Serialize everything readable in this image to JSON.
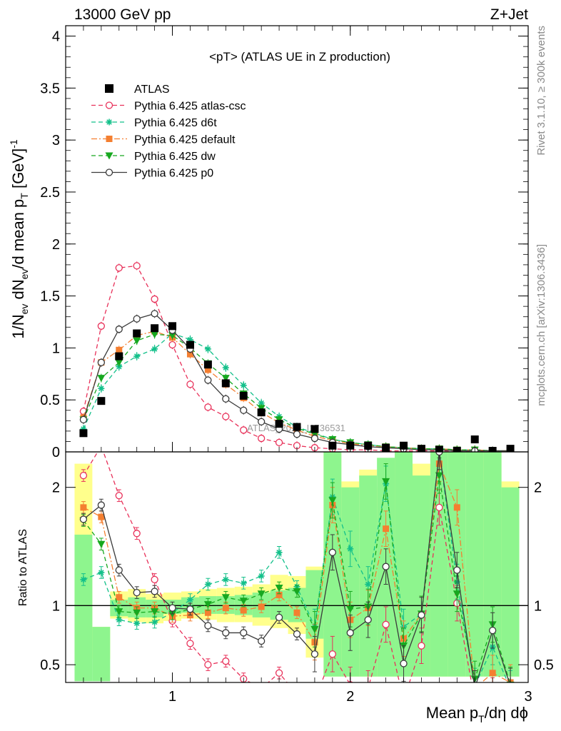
{
  "header": {
    "left": "13000 GeV pp",
    "right": "Z+Jet"
  },
  "side_labels": {
    "rivet": "Rivet 3.1.10, ≥ 300k events",
    "mcplots": "mcplots.cern.ch [arXiv:1306.3436]"
  },
  "watermark": "ATLAS_2019_I1736531",
  "main_title": "<pT> (ATLAS UE in Z production)",
  "top_axis": {
    "ylabel_parts": {
      "a": "1/N",
      "b": "ev",
      "c": " dN",
      "d": "ev",
      "e": "/d mean p",
      "f": "T",
      "g": " [GeV]",
      "h": "-1"
    },
    "ylim": [
      0,
      4.1
    ],
    "yticks": [
      0,
      0.5,
      1,
      1.5,
      2,
      2.5,
      3,
      3.5,
      4
    ],
    "ytick_labels": [
      "0",
      "0.5",
      "1",
      "1.5",
      "2",
      "2.5",
      "3",
      "3.5",
      "4"
    ]
  },
  "bottom_axis": {
    "ylabel": "Ratio to ATLAS",
    "ylim": [
      0.35,
      2.3
    ],
    "yticks": [
      0.5,
      1,
      2
    ],
    "ytick_labels": [
      "0.5",
      "1",
      "2"
    ]
  },
  "x_axis": {
    "xlim": [
      0.4,
      3.0
    ],
    "xticks": [
      1,
      2,
      3
    ],
    "xtick_labels": [
      "1",
      "2",
      "3"
    ],
    "xlabel_parts": {
      "a": "Mean p",
      "b": "T",
      "c": "/dη dϕ"
    }
  },
  "legend": [
    {
      "name": "ATLAS",
      "color": "#000000"
    },
    {
      "name": "Pythia 6.425 atlas-csc",
      "color": "#e8315a"
    },
    {
      "name": "Pythia 6.425 d6t",
      "color": "#13c08a"
    },
    {
      "name": "Pythia 6.425 default",
      "color": "#f47f30"
    },
    {
      "name": "Pythia 6.425 dw",
      "color": "#17a81f"
    },
    {
      "name": "Pythia 6.425 p0",
      "color": "#3a3a3a"
    }
  ],
  "chart_data": {
    "type": "scatter",
    "title": "<pT> (ATLAS UE in Z production)",
    "x": [
      0.5,
      0.6,
      0.7,
      0.8,
      0.9,
      1.0,
      1.1,
      1.2,
      1.3,
      1.4,
      1.5,
      1.6,
      1.7,
      1.8,
      1.9,
      2.0,
      2.1,
      2.2,
      2.3,
      2.4,
      2.5,
      2.6,
      2.7,
      2.8,
      2.9
    ],
    "data": {
      "name": "ATLAS",
      "values": [
        0.18,
        0.49,
        0.92,
        1.14,
        1.19,
        1.21,
        1.03,
        0.84,
        0.66,
        0.54,
        0.38,
        0.27,
        0.24,
        0.22,
        0.06,
        0.06,
        0.06,
        0.04,
        0.06,
        0.03,
        0.02,
        0.01,
        0.12,
        0.01,
        0.03
      ]
    },
    "series": [
      {
        "name": "Pythia 6.425 atlas-csc",
        "style": "dashed",
        "marker": "open-circle",
        "values": [
          0.39,
          1.21,
          1.77,
          1.79,
          1.47,
          1.03,
          0.65,
          0.43,
          0.34,
          0.21,
          0.13,
          0.09,
          0.06,
          0.04,
          0.03,
          0.02,
          0.02,
          0.01,
          0.01,
          0.01,
          0.01,
          0.01,
          0.01,
          0.01,
          0.01
        ]
      },
      {
        "name": "Pythia 6.425 d6t",
        "style": "dashed",
        "marker": "star",
        "values": [
          0.22,
          0.61,
          0.82,
          0.92,
          0.99,
          1.14,
          1.08,
          0.99,
          0.81,
          0.64,
          0.47,
          0.34,
          0.24,
          0.18,
          0.12,
          0.09,
          0.07,
          0.05,
          0.04,
          0.03,
          0.03,
          0.02,
          0.02,
          0.01,
          0.01
        ]
      },
      {
        "name": "Pythia 6.425 default",
        "style": "dashdot",
        "marker": "square",
        "values": [
          0.33,
          0.86,
          0.98,
          1.12,
          1.16,
          1.1,
          0.94,
          0.79,
          0.65,
          0.52,
          0.38,
          0.28,
          0.21,
          0.15,
          0.11,
          0.08,
          0.06,
          0.05,
          0.04,
          0.03,
          0.03,
          0.02,
          0.02,
          0.01,
          0.01
        ]
      },
      {
        "name": "Pythia 6.425 dw",
        "style": "dashed",
        "marker": "triangle-down",
        "values": [
          0.31,
          0.71,
          0.86,
          1.07,
          1.13,
          1.12,
          1.0,
          0.85,
          0.71,
          0.56,
          0.42,
          0.31,
          0.23,
          0.17,
          0.12,
          0.09,
          0.07,
          0.05,
          0.04,
          0.03,
          0.03,
          0.02,
          0.02,
          0.01,
          0.01
        ]
      },
      {
        "name": "Pythia 6.425 p0",
        "style": "solid",
        "marker": "open-circle",
        "values": [
          0.31,
          0.86,
          1.18,
          1.28,
          1.33,
          1.17,
          0.99,
          0.69,
          0.51,
          0.4,
          0.29,
          0.22,
          0.17,
          0.13,
          0.09,
          0.07,
          0.05,
          0.04,
          0.03,
          0.02,
          0.02,
          0.01,
          0.01,
          0.01,
          0.01
        ]
      }
    ],
    "ratio": {
      "ylabel": "Ratio to ATLAS",
      "yellow_band": [
        [
          0.55,
          2.2
        ],
        [
          0.55,
          0.82
        ],
        [
          0.89,
          1.12
        ],
        [
          0.86,
          1.14
        ],
        [
          0.85,
          1.1
        ],
        [
          0.87,
          1.11
        ],
        [
          0.89,
          1.12
        ],
        [
          0.88,
          1.14
        ],
        [
          0.86,
          1.15
        ],
        [
          0.86,
          1.16
        ],
        [
          0.83,
          1.18
        ],
        [
          0.81,
          1.26
        ],
        [
          0.76,
          1.25
        ],
        [
          0.56,
          1.33
        ],
        [
          0.4,
          2.35
        ],
        [
          0.4,
          2.05
        ],
        [
          0.4,
          2.15
        ],
        [
          0.4,
          2.0
        ],
        [
          0.4,
          2.35
        ],
        [
          0.4,
          2.2
        ],
        [
          0.4,
          2.35
        ],
        [
          0.4,
          2.35
        ],
        [
          0.4,
          2.3
        ],
        [
          0.4,
          2.35
        ],
        [
          0.4,
          2.05
        ]
      ],
      "green_band": [
        [
          0.36,
          1.6
        ],
        [
          0.36,
          0.82
        ],
        [
          0.91,
          1.05
        ],
        [
          0.9,
          1.07
        ],
        [
          0.9,
          1.05
        ],
        [
          0.93,
          1.05
        ],
        [
          0.94,
          1.07
        ],
        [
          0.93,
          1.08
        ],
        [
          0.93,
          1.08
        ],
        [
          0.92,
          1.09
        ],
        [
          0.9,
          1.11
        ],
        [
          0.88,
          1.13
        ],
        [
          0.86,
          1.15
        ],
        [
          0.72,
          1.3
        ],
        [
          0.4,
          2.3
        ],
        [
          0.4,
          2.0
        ],
        [
          0.4,
          2.1
        ],
        [
          0.4,
          2.25
        ],
        [
          0.4,
          2.3
        ],
        [
          0.4,
          2.1
        ],
        [
          0.4,
          2.3
        ],
        [
          0.4,
          2.3
        ],
        [
          0.4,
          2.3
        ],
        [
          0.4,
          2.3
        ],
        [
          0.4,
          2.0
        ]
      ],
      "series": [
        {
          "name": "Pythia 6.425 atlas-csc",
          "values": [
            2.1,
            2.35,
            1.93,
            1.61,
            1.22,
            0.87,
            0.68,
            0.5,
            0.53,
            0.38,
            0.3,
            0.43,
            0.25,
            0.2,
            0.59,
            0.33,
            0.3,
            0.84,
            0.2,
            0.66,
            1.83,
            1.02,
            0.2,
            0.24,
            0.2
          ]
        },
        {
          "name": "Pythia 6.425 d6t",
          "values": [
            1.22,
            1.28,
            0.88,
            0.85,
            0.86,
            0.94,
            1.05,
            1.18,
            1.22,
            1.19,
            1.25,
            1.45,
            1.16,
            0.82,
            1.92,
            1.48,
            1.18,
            2.03,
            0.82,
            0.93,
            2.3,
            1.2,
            0.32,
            0.65,
            0.3
          ]
        },
        {
          "name": "Pythia 6.425 default",
          "values": [
            1.83,
            1.75,
            1.07,
            0.98,
            0.98,
            0.91,
            0.92,
            0.94,
            0.98,
            0.96,
            0.99,
            1.09,
            0.94,
            0.69,
            1.85,
            0.88,
            0.98,
            1.65,
            0.72,
            0.93,
            2.2,
            1.83,
            0.3,
            0.43,
            0.35
          ]
        },
        {
          "name": "Pythia 6.425 dw",
          "values": [
            1.72,
            1.52,
            0.95,
            0.94,
            0.95,
            0.93,
            0.97,
            1.01,
            1.07,
            1.04,
            1.1,
            1.15,
            1.12,
            0.8,
            1.89,
            0.97,
            0.99,
            2.05,
            0.66,
            0.93,
            2.1,
            1.1,
            0.38,
            0.84,
            0.33
          ]
        },
        {
          "name": "Pythia 6.425 p0",
          "values": [
            1.73,
            1.85,
            1.3,
            1.11,
            1.12,
            0.98,
            0.97,
            0.83,
            0.77,
            0.77,
            0.7,
            0.9,
            0.76,
            0.59,
            1.45,
            0.77,
            0.88,
            1.33,
            0.51,
            0.92,
            2.3,
            1.3,
            0.3,
            0.79,
            0.32
          ]
        }
      ]
    }
  }
}
